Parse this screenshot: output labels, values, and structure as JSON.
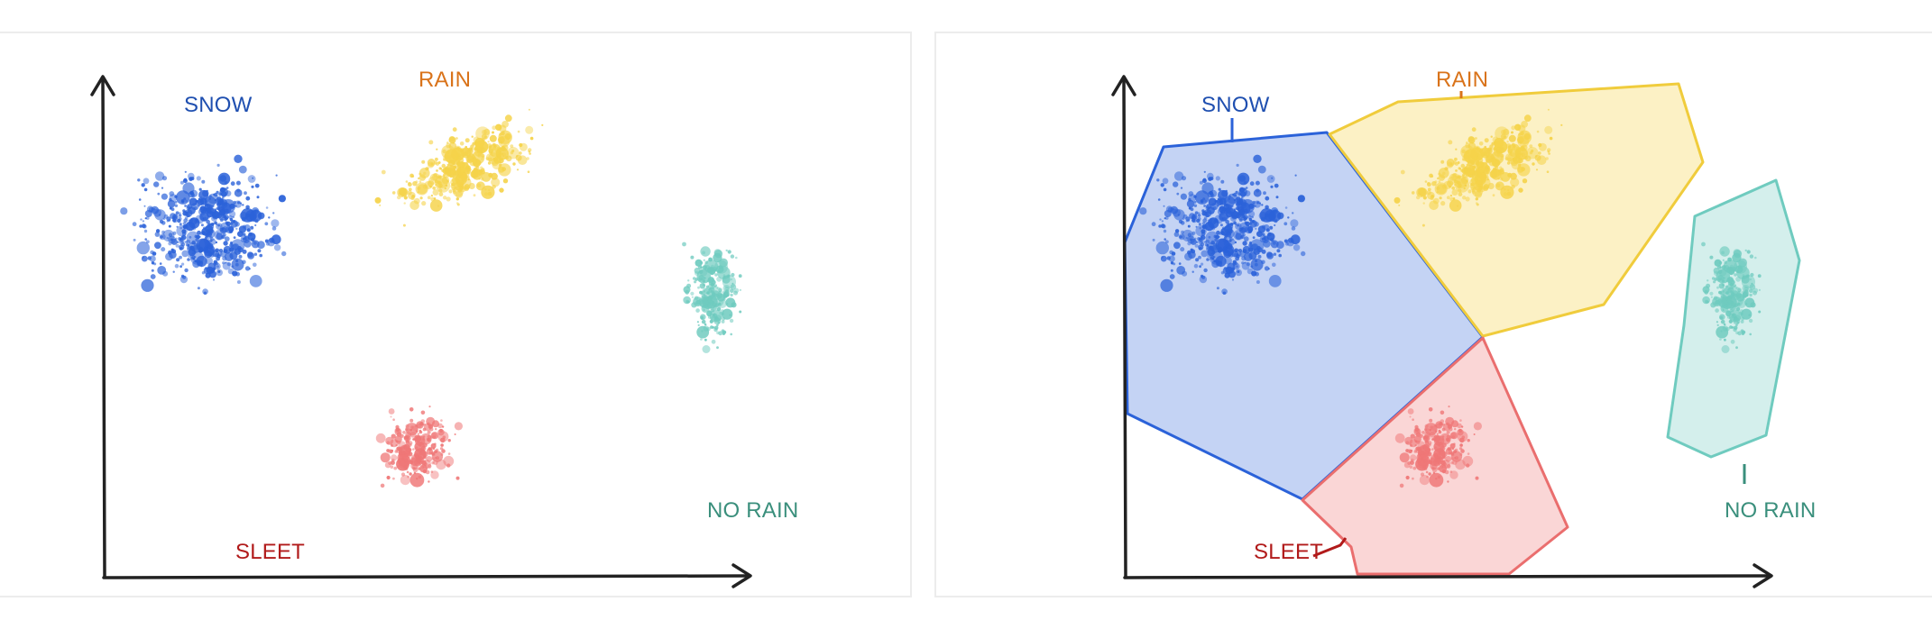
{
  "panels": {
    "left": {
      "labels": {
        "snow": "SNOW",
        "rain": "RAIN",
        "sleet": "SLEET",
        "no_rain": "NO RAIN"
      }
    },
    "right": {
      "labels": {
        "snow": "SNOW",
        "rain": "RAIN",
        "sleet": "SLEET",
        "no_rain": "NO RAIN"
      }
    }
  },
  "colors": {
    "snow": "#2b62d9",
    "snow_label": "#1f4fb0",
    "rain": "#f5d34a",
    "rain_label": "#d9731a",
    "sleet": "#ef7777",
    "sleet_label": "#b11a1a",
    "no_rain": "#6fcbbf",
    "no_rain_label": "#3a8f7c",
    "axis": "#222222"
  }
}
